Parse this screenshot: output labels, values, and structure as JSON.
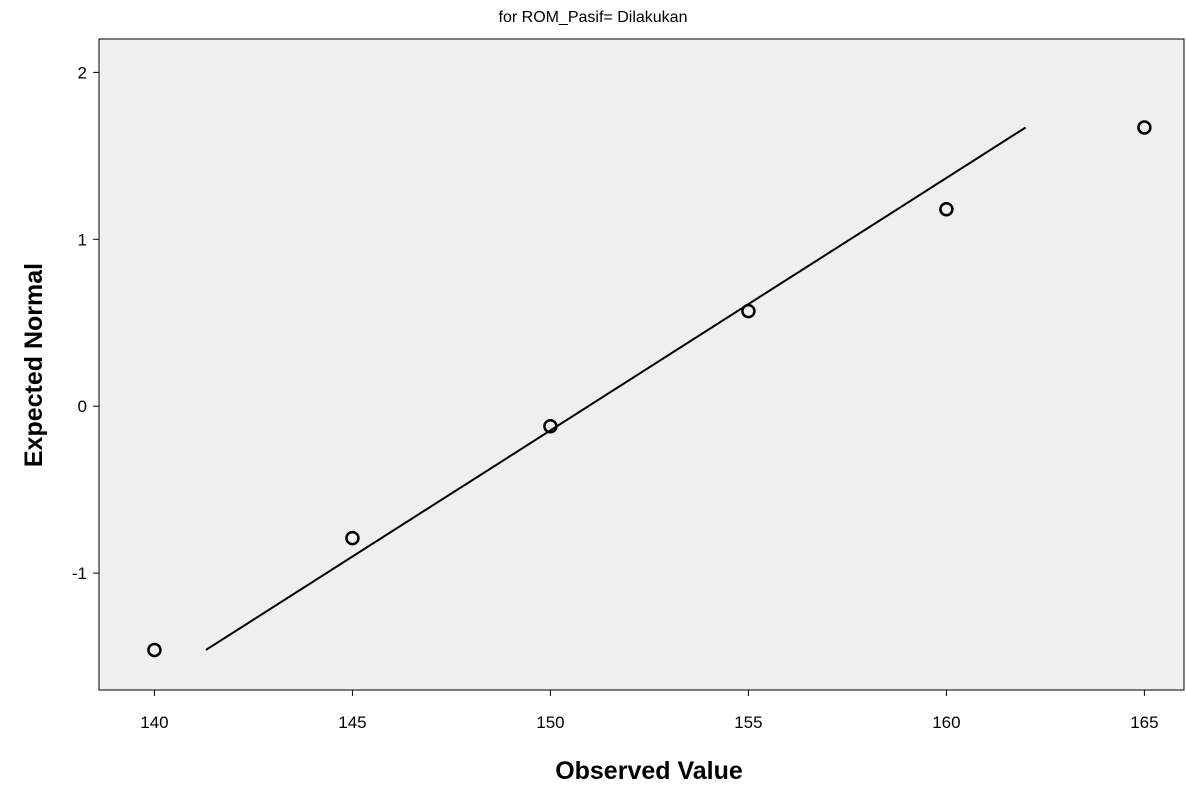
{
  "chart_data": {
    "type": "scatter",
    "subtitle": "for ROM_Pasif= Dilakukan",
    "xlabel": "Observed Value",
    "ylabel": "Expected Normal",
    "xlim": [
      138.6,
      166.0
    ],
    "ylim": [
      -1.7,
      2.2
    ],
    "x_ticks": [
      {
        "value": 140,
        "label": "140"
      },
      {
        "value": 145,
        "label": "145"
      },
      {
        "value": 150,
        "label": "150"
      },
      {
        "value": 155,
        "label": "155"
      },
      {
        "value": 160,
        "label": "160"
      },
      {
        "value": 165,
        "label": "165"
      }
    ],
    "y_ticks": [
      {
        "value": -1,
        "label": "-1"
      },
      {
        "value": 0,
        "label": "0"
      },
      {
        "value": 1,
        "label": "1"
      },
      {
        "value": 2,
        "label": "2"
      }
    ],
    "points": [
      {
        "x": 140,
        "y": -1.46
      },
      {
        "x": 145,
        "y": -0.79
      },
      {
        "x": 150,
        "y": -0.12
      },
      {
        "x": 155,
        "y": 0.57
      },
      {
        "x": 160,
        "y": 1.18
      },
      {
        "x": 165,
        "y": 1.67
      }
    ],
    "reference_line": {
      "x1": 141.3,
      "y1": -1.46,
      "x2": 162.0,
      "y2": 1.67
    },
    "grid": false,
    "colors": {
      "plot_bg": "#efefef",
      "axis": "#000000",
      "marker": "#000000",
      "page_bg": "#ffffff"
    }
  }
}
